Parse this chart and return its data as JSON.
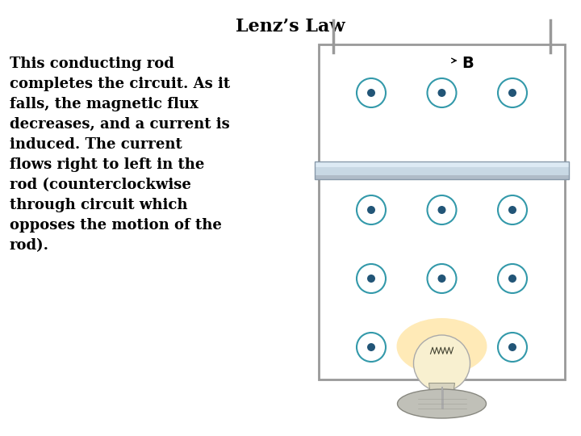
{
  "title": "Lenz’s Law",
  "title_fontsize": 16,
  "background_color": "#ffffff",
  "text_body": "This conducting rod\ncompletes the circuit. As it\nfalls, the magnetic flux\ndecreases, and a current is\ninduced. The current\nflows right to left in the\nrod (counterclockwise\nthrough circuit which\nopposes the motion of the\nrod).",
  "text_fontsize": 13,
  "dot_circle_color": "#3399aa",
  "dot_dot_color": "#225577",
  "rail_color": "#999999",
  "rod_top_color": "#dde8f0",
  "rod_mid_color": "#b8c8d8",
  "rod_bottom_color": "#c8d4dc",
  "glow_color": "#ffdd88",
  "bulb_color": "#f8f0d0",
  "bulb_neck_color": "#d8d4c0",
  "bulb_base_color": "#b8b8b0",
  "B_label": "B",
  "B_fontsize": 14
}
